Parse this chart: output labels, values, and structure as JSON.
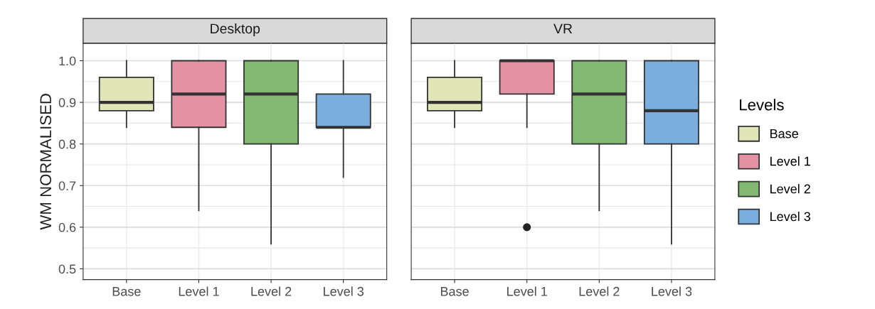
{
  "chart_data": [
    {
      "type": "box",
      "title": "Desktop",
      "ylabel": "WM NORMALISED",
      "categories": [
        "Base",
        "Level 1",
        "Level 2",
        "Level 3"
      ],
      "series": [
        {
          "color": "#e1e6b8",
          "boxes": [
            {
              "low": 0.84,
              "q1": 0.88,
              "median": 0.9,
              "q3": 0.96,
              "high": 1.0
            },
            null,
            null,
            null
          ]
        },
        {
          "color": "#e591a4",
          "boxes": [
            null,
            {
              "low": 0.64,
              "q1": 0.84,
              "median": 0.92,
              "q3": 1.0,
              "high": 1.0
            },
            null,
            null
          ]
        },
        {
          "color": "#83b873",
          "boxes": [
            null,
            null,
            {
              "low": 0.56,
              "q1": 0.8,
              "median": 0.92,
              "q3": 1.0,
              "high": 1.0
            },
            null
          ]
        },
        {
          "color": "#79aedf",
          "boxes": [
            null,
            null,
            null,
            {
              "low": 0.72,
              "q1": 0.84,
              "median": 0.84,
              "q3": 0.92,
              "high": 1.0
            }
          ]
        }
      ],
      "ylim": [
        0.474,
        1.042
      ],
      "yticks": [
        0.5,
        0.6,
        0.7,
        0.8,
        0.9,
        {
          "value": 1.0,
          "label": "1.0"
        }
      ],
      "grid": true
    },
    {
      "type": "box",
      "title": "VR",
      "categories": [
        "Base",
        "Level 1",
        "Level 2",
        "Level 3"
      ],
      "series": [
        {
          "name": "Base",
          "color": "#e1e6b8",
          "boxes": [
            {
              "low": 0.84,
              "q1": 0.88,
              "median": 0.9,
              "q3": 0.96,
              "high": 1.0
            },
            null,
            null,
            null
          ]
        },
        {
          "name": "Level 1",
          "color": "#e591a4",
          "boxes": [
            null,
            {
              "low": 0.84,
              "q1": 0.92,
              "median": 1.0,
              "q3": 1.0,
              "high": 1.0,
              "outliers": [
                0.6
              ]
            },
            null,
            null
          ]
        },
        {
          "name": "Level 2",
          "color": "#83b873",
          "boxes": [
            null,
            null,
            {
              "low": 0.64,
              "q1": 0.8,
              "median": 0.92,
              "q3": 1.0,
              "high": 1.0
            },
            null
          ]
        },
        {
          "name": "Level 3",
          "color": "#79aedf",
          "boxes": [
            null,
            null,
            null,
            {
              "low": 0.56,
              "q1": 0.8,
              "median": 0.88,
              "q3": 1.0,
              "high": 1.0
            }
          ]
        }
      ],
      "ylim": [
        0.474,
        1.042
      ],
      "yticks": [
        0.5,
        0.6,
        0.7,
        0.8,
        0.9,
        1
      ],
      "tick_labels": "x",
      "grid": true,
      "legend": "right",
      "legend_title": "Levels"
    }
  ]
}
